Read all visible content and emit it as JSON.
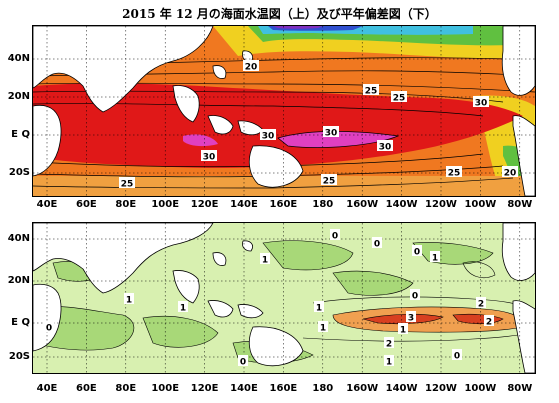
{
  "title": "2015 年 12 月の海面水温図（上）及び平年偏差図（下）",
  "lat_ticks": [
    "40N",
    "20N",
    "E Q",
    "20S"
  ],
  "lon_ticks": [
    "40E",
    "60E",
    "80E",
    "100E",
    "120E",
    "140E",
    "160E",
    "180",
    "160W",
    "140W",
    "120W",
    "100W",
    "80W"
  ],
  "top_map": {
    "name": "sea-surface-temperature",
    "contour_labels": [
      "20",
      "25",
      "25",
      "30",
      "30",
      "30",
      "30",
      "30",
      "25",
      "25",
      "25",
      "20"
    ]
  },
  "bottom_map": {
    "name": "sea-surface-temperature-anomaly",
    "contour_labels": [
      "0",
      "1",
      "0",
      "0",
      "1",
      "1",
      "1",
      "1",
      "0",
      "2",
      "3",
      "2",
      "1",
      "1",
      "2",
      "0",
      "0",
      "1",
      "0"
    ]
  },
  "colors": {
    "warm_pool": "#e01818",
    "hot_core": "#e040c0",
    "orange": "#f07820",
    "yellow": "#f0d020",
    "green": "#60c040",
    "cyan": "#40c0e0",
    "blue": "#3050d0",
    "purple": "#8030c0",
    "land": "#ffffff",
    "anom_light": "#d8f0b0",
    "anom_mid": "#a8d878",
    "anom_pos": "#f0a050",
    "anom_hot": "#d84020"
  }
}
